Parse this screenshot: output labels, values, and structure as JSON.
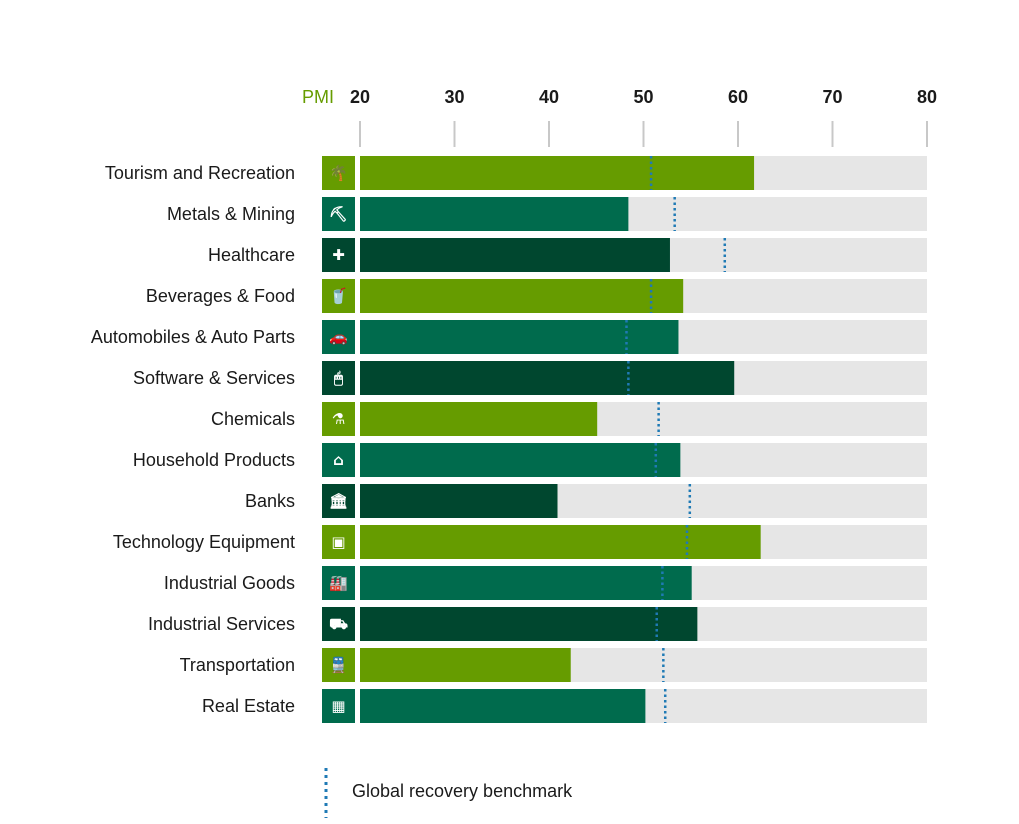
{
  "chart_data": {
    "type": "bar",
    "orientation": "horizontal",
    "axis_title": "PMI",
    "xlim": [
      20,
      80
    ],
    "ticks": [
      20,
      30,
      40,
      50,
      60,
      70,
      80
    ],
    "categories": [
      "Tourism and Recreation",
      "Metals & Mining",
      "Healthcare",
      "Beverages & Food",
      "Automobiles & Auto Parts",
      "Software & Services",
      "Chemicals",
      "Household Products",
      "Banks",
      "Technology Equipment",
      "Industrial Goods",
      "Industrial Services",
      "Transportation",
      "Real Estate"
    ],
    "values": [
      61.7,
      48.4,
      52.8,
      54.2,
      53.7,
      59.6,
      45.1,
      53.9,
      40.9,
      62.4,
      55.1,
      55.7,
      42.3,
      50.2
    ],
    "benchmark": {
      "name": "Global recovery benchmark",
      "values": [
        50.8,
        53.3,
        58.6,
        50.8,
        48.2,
        48.4,
        51.6,
        51.3,
        54.9,
        54.6,
        52.0,
        51.4,
        52.1,
        52.3
      ]
    },
    "icons": [
      "palm-tree-icon",
      "pickaxe-icon",
      "medical-cross-icon",
      "food-drink-icon",
      "car-icon",
      "computer-mouse-icon",
      "flask-icon",
      "house-icon",
      "bank-icon",
      "chip-icon",
      "factory-icon",
      "forklift-icon",
      "train-icon",
      "building-icon"
    ],
    "icon_glyphs": [
      "🌴",
      "⛏",
      "✚",
      "🥤",
      "🚗",
      "🖱",
      "⚗",
      "⌂",
      "🏛",
      "▣",
      "🏭",
      "⛟",
      "🚆",
      "▦"
    ],
    "legend": "Global recovery benchmark"
  },
  "colors": {
    "light_green": "#669c00",
    "mid_green": "#006b4d",
    "dark_green": "#00472f",
    "track": "#e6e6e6",
    "tick_line": "#c8c8c8",
    "benchmark": "#1f7ab5"
  },
  "color_cycle": [
    "light_green",
    "mid_green",
    "dark_green"
  ]
}
